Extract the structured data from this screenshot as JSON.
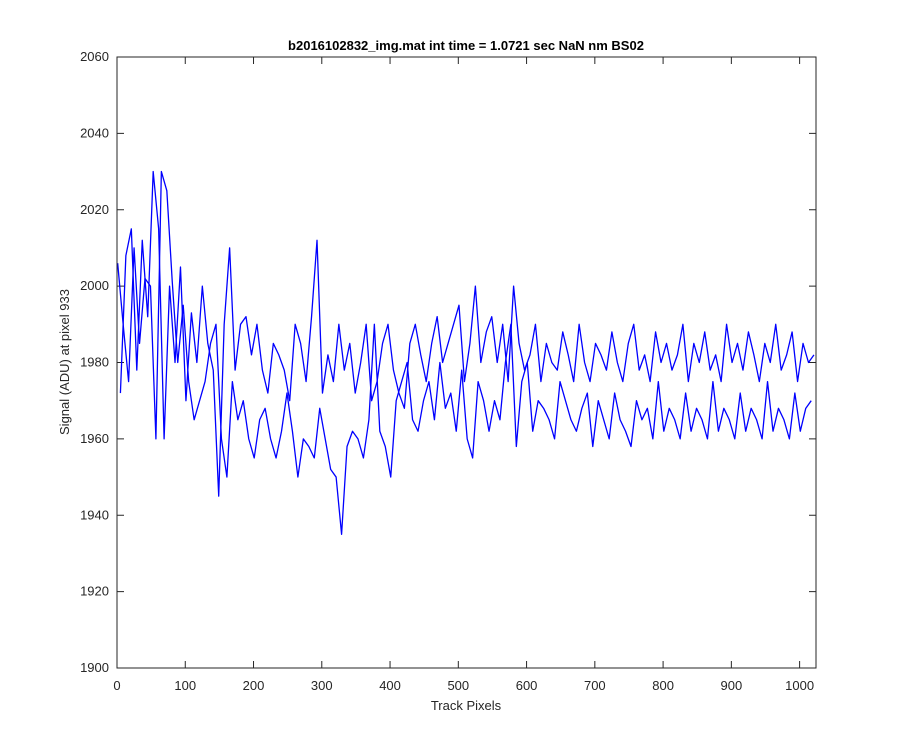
{
  "chart_data": {
    "type": "line",
    "title": "b2016102832_img.mat int time = 1.0721 sec  NaN nm BS02",
    "xlabel": "Track Pixels",
    "ylabel": "Signal (ADU) at pixel 933",
    "xlim": [
      0,
      1024
    ],
    "ylim": [
      1900,
      2060
    ],
    "xticks": [
      0,
      100,
      200,
      300,
      400,
      500,
      600,
      700,
      800,
      900,
      1000
    ],
    "yticks": [
      1900,
      1920,
      1940,
      1960,
      1980,
      2000,
      2020,
      2040,
      2060
    ],
    "grid": false,
    "box": true,
    "series": [
      {
        "color": "#0000ff",
        "x_start": 1,
        "x_step": 8,
        "values": [
          2006,
          1990,
          1975,
          2010,
          1985,
          2002,
          2000,
          1960,
          2030,
          2025,
          2001,
          1980,
          1995,
          1975,
          1965,
          1970,
          1975,
          1985,
          1990,
          1960,
          1950,
          1975,
          1965,
          1970,
          1960,
          1955,
          1965,
          1968,
          1960,
          1955,
          1962,
          1972,
          1962,
          1950,
          1960,
          1958,
          1955,
          1968,
          1960,
          1952,
          1950,
          1935,
          1958,
          1962,
          1960,
          1955,
          1965,
          1990,
          1962,
          1958,
          1950,
          1970,
          1975,
          1980,
          1965,
          1962,
          1970,
          1975,
          1965,
          1980,
          1968,
          1972,
          1962,
          1978,
          1960,
          1955,
          1975,
          1970,
          1962,
          1970,
          1965,
          1980,
          1990,
          1958,
          1975,
          1980,
          1962,
          1970,
          1968,
          1965,
          1960,
          1975,
          1970,
          1965,
          1962,
          1968,
          1972,
          1958,
          1970,
          1965,
          1960,
          1972,
          1965,
          1962,
          1958,
          1970,
          1965,
          1968,
          1960,
          1975,
          1962,
          1968,
          1965,
          1960,
          1972,
          1962,
          1968,
          1965,
          1960,
          1975,
          1962,
          1968,
          1965,
          1960,
          1972,
          1962,
          1968,
          1965,
          1960,
          1975,
          1962,
          1968,
          1965,
          1960,
          1972,
          1962,
          1968,
          1970
        ]
      },
      {
        "color": "#0000ff",
        "x_start": 5,
        "x_step": 8,
        "values": [
          1972,
          2008,
          2015,
          1978,
          2012,
          1992,
          2030,
          2015,
          1960,
          2000,
          1980,
          2005,
          1970,
          1993,
          1980,
          2000,
          1985,
          1978,
          1945,
          1990,
          2010,
          1978,
          1990,
          1992,
          1982,
          1990,
          1978,
          1972,
          1985,
          1982,
          1978,
          1970,
          1990,
          1985,
          1975,
          1992,
          2012,
          1972,
          1982,
          1975,
          1990,
          1978,
          1985,
          1972,
          1980,
          1990,
          1970,
          1975,
          1985,
          1990,
          1978,
          1972,
          1968,
          1985,
          1990,
          1982,
          1975,
          1985,
          1992,
          1980,
          1985,
          1990,
          1995,
          1975,
          1985,
          2000,
          1980,
          1988,
          1992,
          1980,
          1990,
          1975,
          2000,
          1985,
          1978,
          1982,
          1990,
          1975,
          1985,
          1980,
          1978,
          1988,
          1982,
          1975,
          1990,
          1980,
          1975,
          1985,
          1982,
          1978,
          1988,
          1980,
          1975,
          1985,
          1990,
          1978,
          1982,
          1975,
          1988,
          1980,
          1985,
          1978,
          1982,
          1990,
          1975,
          1985,
          1980,
          1988,
          1978,
          1982,
          1975,
          1990,
          1980,
          1985,
          1978,
          1988,
          1982,
          1975,
          1985,
          1980,
          1990,
          1978,
          1982,
          1988,
          1975,
          1985,
          1980,
          1982
        ]
      }
    ]
  }
}
